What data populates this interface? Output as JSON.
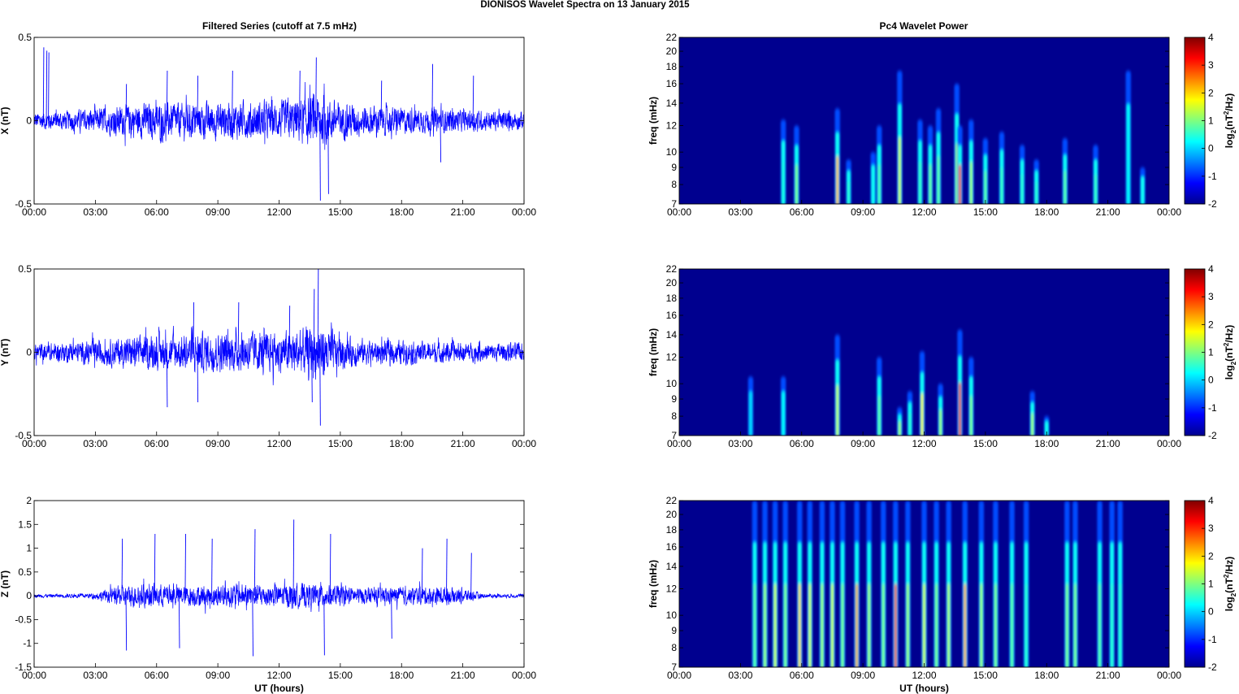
{
  "figure": {
    "title": "DIONISOS Wavelet Spectra on 13 January   2015",
    "left_title": "Filtered Series (cutoff at 7.5 mHz)",
    "right_title": "Pc4 Wavelet Power"
  },
  "colors": {
    "series_line": "#0000ff",
    "background_power": "#00008f",
    "axis": "#000000"
  },
  "chart_data": [
    {
      "type": "line",
      "panel": "X filtered series",
      "xlabel": "",
      "ylabel": "X (nT)",
      "ylim": [
        -0.5,
        0.5
      ],
      "yticks": [
        "-0.5",
        "0",
        "0.5"
      ],
      "xticks": [
        "00:00",
        "03:00",
        "06:00",
        "09:00",
        "12:00",
        "15:00",
        "18:00",
        "21:00",
        "00:00"
      ],
      "envelope": {
        "hours": [
          0,
          1,
          2,
          3,
          4,
          5,
          6,
          7,
          8,
          9,
          10,
          11,
          12,
          13,
          14,
          15,
          16,
          17,
          18,
          19,
          20,
          21,
          22,
          23,
          24
        ],
        "amplitude": [
          0.07,
          0.07,
          0.08,
          0.09,
          0.11,
          0.13,
          0.14,
          0.13,
          0.13,
          0.14,
          0.14,
          0.14,
          0.14,
          0.17,
          0.2,
          0.14,
          0.12,
          0.11,
          0.1,
          0.09,
          0.09,
          0.08,
          0.08,
          0.07,
          0.07
        ]
      },
      "spikes": [
        [
          0.45,
          0.44
        ],
        [
          0.6,
          0.42
        ],
        [
          0.7,
          0.41
        ],
        [
          4.5,
          0.22
        ],
        [
          6.5,
          0.3
        ],
        [
          8.0,
          0.27
        ],
        [
          9.7,
          0.3
        ],
        [
          13.0,
          0.3
        ],
        [
          13.8,
          0.38
        ],
        [
          14.0,
          -0.48
        ],
        [
          14.4,
          -0.44
        ],
        [
          17.0,
          0.24
        ],
        [
          19.5,
          0.34
        ],
        [
          19.9,
          -0.25
        ],
        [
          21.5,
          0.27
        ]
      ]
    },
    {
      "type": "line",
      "panel": "Y filtered series",
      "xlabel": "",
      "ylabel": "Y (nT)",
      "ylim": [
        -0.5,
        0.5
      ],
      "yticks": [
        "-0.5",
        "0",
        "0.5"
      ],
      "xticks": [
        "00:00",
        "03:00",
        "06:00",
        "09:00",
        "12:00",
        "15:00",
        "18:00",
        "21:00",
        "00:00"
      ],
      "envelope": {
        "hours": [
          0,
          1,
          2,
          3,
          4,
          5,
          6,
          7,
          8,
          9,
          10,
          11,
          12,
          13,
          14,
          15,
          16,
          17,
          18,
          19,
          20,
          21,
          22,
          23,
          24
        ],
        "amplitude": [
          0.07,
          0.07,
          0.08,
          0.09,
          0.11,
          0.12,
          0.13,
          0.13,
          0.15,
          0.15,
          0.15,
          0.15,
          0.15,
          0.17,
          0.22,
          0.12,
          0.1,
          0.09,
          0.09,
          0.08,
          0.08,
          0.07,
          0.07,
          0.07,
          0.07
        ]
      },
      "spikes": [
        [
          7.8,
          0.3
        ],
        [
          10.0,
          0.3
        ],
        [
          12.5,
          0.28
        ],
        [
          13.9,
          0.5
        ],
        [
          13.7,
          0.38
        ],
        [
          14.0,
          -0.44
        ],
        [
          13.6,
          -0.3
        ],
        [
          8.0,
          -0.3
        ],
        [
          6.5,
          -0.33
        ]
      ]
    },
    {
      "type": "line",
      "panel": "Z filtered series",
      "xlabel": "UT (hours)",
      "ylabel": "Z (nT)",
      "ylim": [
        -1.5,
        2
      ],
      "yticks": [
        "-1.5",
        "-1",
        "-0.5",
        "0",
        "0.5",
        "1",
        "1.5",
        "2"
      ],
      "xticks": [
        "00:00",
        "03:00",
        "06:00",
        "09:00",
        "12:00",
        "15:00",
        "18:00",
        "21:00",
        "00:00"
      ],
      "envelope": {
        "hours": [
          0,
          1,
          2,
          3,
          4,
          5,
          6,
          7,
          8,
          9,
          10,
          11,
          12,
          13,
          14,
          15,
          16,
          17,
          18,
          19,
          20,
          21,
          22,
          23,
          24
        ],
        "amplitude": [
          0.05,
          0.05,
          0.06,
          0.08,
          0.25,
          0.3,
          0.3,
          0.28,
          0.28,
          0.3,
          0.32,
          0.3,
          0.3,
          0.32,
          0.32,
          0.26,
          0.22,
          0.22,
          0.22,
          0.24,
          0.25,
          0.2,
          0.06,
          0.05,
          0.05
        ]
      },
      "spikes": [
        [
          4.3,
          1.2
        ],
        [
          5.9,
          1.3
        ],
        [
          7.4,
          1.3
        ],
        [
          8.7,
          1.2
        ],
        [
          10.8,
          1.4
        ],
        [
          12.7,
          1.6
        ],
        [
          14.5,
          1.3
        ],
        [
          19.0,
          1.0
        ],
        [
          20.2,
          1.2
        ],
        [
          21.4,
          0.9
        ],
        [
          4.5,
          -1.15
        ],
        [
          7.1,
          -1.1
        ],
        [
          10.7,
          -1.27
        ],
        [
          14.2,
          -1.25
        ],
        [
          17.5,
          -0.9
        ]
      ]
    },
    {
      "type": "heatmap",
      "panel": "X Pc4 wavelet power",
      "xlabel": "",
      "ylabel": "freq (mHz)",
      "yticks": [
        "7",
        "8",
        "9",
        "10",
        "12",
        "14",
        "16",
        "18",
        "20",
        "22"
      ],
      "xticks": [
        "00:00",
        "03:00",
        "06:00",
        "09:00",
        "12:00",
        "15:00",
        "18:00",
        "21:00",
        "00:00"
      ],
      "ylim": [
        7,
        22
      ],
      "colorbar": {
        "label": "log2(nT2/Hz)",
        "range": [
          -2,
          4
        ],
        "ticks": [
          "-2",
          "-1",
          "0",
          "1",
          "2",
          "3",
          "4"
        ]
      },
      "bursts": [
        [
          5.1,
          12.5,
          0.4
        ],
        [
          5.75,
          12.0,
          1.0
        ],
        [
          7.75,
          13.5,
          2.2
        ],
        [
          8.3,
          9.5,
          0.5
        ],
        [
          9.5,
          10.0,
          0.3
        ],
        [
          9.8,
          12.0,
          0.7
        ],
        [
          10.8,
          17.5,
          1.5
        ],
        [
          11.8,
          12.5,
          0.6
        ],
        [
          12.3,
          12.0,
          0.9
        ],
        [
          12.7,
          13.5,
          0.8
        ],
        [
          13.6,
          16.0,
          1.2
        ],
        [
          13.75,
          12.0,
          3.1
        ],
        [
          14.3,
          12.5,
          1.2
        ],
        [
          15.0,
          11.0,
          0.8
        ],
        [
          15.8,
          11.5,
          0.6
        ],
        [
          16.8,
          10.5,
          0.5
        ],
        [
          17.5,
          9.5,
          0.5
        ],
        [
          18.9,
          11.0,
          0.8
        ],
        [
          20.4,
          10.5,
          0.6
        ],
        [
          22.7,
          9.0,
          0.3
        ],
        [
          22.0,
          17.5,
          0.2
        ]
      ]
    },
    {
      "type": "heatmap",
      "panel": "Y Pc4 wavelet power",
      "xlabel": "",
      "ylabel": "freq (mHz)",
      "yticks": [
        "7",
        "8",
        "9",
        "10",
        "12",
        "14",
        "16",
        "18",
        "20",
        "22"
      ],
      "xticks": [
        "00:00",
        "03:00",
        "06:00",
        "09:00",
        "12:00",
        "15:00",
        "18:00",
        "21:00",
        "00:00"
      ],
      "ylim": [
        7,
        22
      ],
      "colorbar": {
        "label": "log2(nT2/Hz)",
        "range": [
          -2,
          4
        ],
        "ticks": [
          "-2",
          "-1",
          "0",
          "1",
          "2",
          "3",
          "4"
        ]
      },
      "bursts": [
        [
          3.5,
          10.5,
          0.0
        ],
        [
          5.1,
          10.5,
          0.2
        ],
        [
          7.75,
          14.0,
          1.4
        ],
        [
          9.8,
          12.0,
          0.8
        ],
        [
          10.8,
          8.5,
          1.2
        ],
        [
          11.3,
          9.5,
          0.5
        ],
        [
          11.9,
          12.5,
          1.8
        ],
        [
          12.8,
          10.0,
          1.2
        ],
        [
          13.75,
          14.5,
          3.3
        ],
        [
          14.3,
          12.0,
          1.0
        ],
        [
          17.3,
          9.5,
          1.2
        ],
        [
          18.0,
          8.0,
          0.3
        ]
      ]
    },
    {
      "type": "heatmap",
      "panel": "Z Pc4 wavelet power",
      "xlabel": "UT (hours)",
      "ylabel": "freq (mHz)",
      "yticks": [
        "7",
        "8",
        "9",
        "10",
        "12",
        "14",
        "16",
        "18",
        "20",
        "22"
      ],
      "xticks": [
        "00:00",
        "03:00",
        "06:00",
        "09:00",
        "12:00",
        "15:00",
        "18:00",
        "21:00",
        "00:00"
      ],
      "ylim": [
        7,
        22
      ],
      "colorbar": {
        "label": "log2(nT2/Hz)",
        "range": [
          -2,
          4
        ],
        "ticks": [
          "-2",
          "-1",
          "0",
          "1",
          "2",
          "3",
          "4"
        ]
      },
      "bursts": [
        [
          3.7,
          22,
          0.8
        ],
        [
          4.2,
          22,
          1.2
        ],
        [
          4.7,
          22,
          1.5
        ],
        [
          5.2,
          22,
          1.0
        ],
        [
          5.9,
          22,
          2.0
        ],
        [
          6.4,
          22,
          1.5
        ],
        [
          7.0,
          22,
          1.2
        ],
        [
          7.5,
          22,
          1.5
        ],
        [
          8.0,
          22,
          1.0
        ],
        [
          8.7,
          22,
          2.3
        ],
        [
          9.3,
          22,
          1.2
        ],
        [
          10.0,
          22,
          1.0
        ],
        [
          10.6,
          22,
          3.3
        ],
        [
          11.2,
          22,
          1.2
        ],
        [
          12.0,
          22,
          1.5
        ],
        [
          12.6,
          22,
          1.0
        ],
        [
          13.2,
          22,
          1.3
        ],
        [
          14.0,
          22,
          2.3
        ],
        [
          14.8,
          22,
          1.2
        ],
        [
          15.5,
          22,
          1.0
        ],
        [
          16.3,
          22,
          0.8
        ],
        [
          17.0,
          22,
          0.5
        ],
        [
          19.0,
          22,
          1.0
        ],
        [
          19.4,
          22,
          1.0
        ],
        [
          20.6,
          22,
          0.8
        ],
        [
          21.2,
          22,
          0.5
        ],
        [
          21.6,
          22,
          0.5
        ]
      ]
    }
  ]
}
